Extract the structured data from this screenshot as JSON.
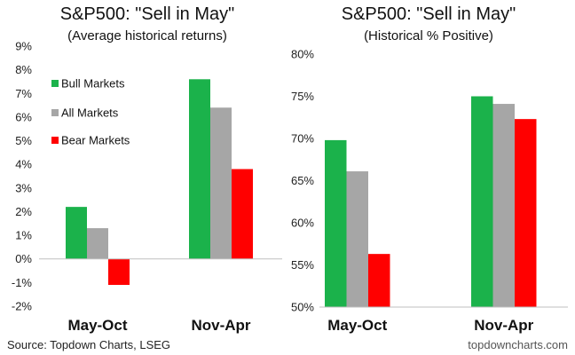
{
  "colors": {
    "bull": "#1bb24b",
    "all": "#a6a6a6",
    "bear": "#ff0000",
    "axis": "#bfbfbf"
  },
  "footer": {
    "source": "Source: Topdown Charts, LSEG",
    "site": "topdowncharts.com"
  },
  "chart_data": [
    {
      "type": "bar",
      "title": "S&P500: \"Sell in May\"",
      "subtitle": "(Average historical returns)",
      "categories": [
        "May-Oct",
        "Nov-Apr"
      ],
      "series": [
        {
          "name": "Bull Markets",
          "color": "#1bb24b",
          "values": [
            2.2,
            7.6
          ]
        },
        {
          "name": "All Markets",
          "color": "#a6a6a6",
          "values": [
            1.3,
            6.4
          ]
        },
        {
          "name": "Bear Markets",
          "color": "#ff0000",
          "values": [
            -1.1,
            3.8
          ]
        }
      ],
      "ylim": [
        -2,
        9
      ],
      "yticks": [
        -2,
        -1,
        0,
        1,
        2,
        3,
        4,
        5,
        6,
        7,
        8,
        9
      ],
      "ytick_labels": [
        "-2%",
        "-1%",
        "0%",
        "1%",
        "2%",
        "3%",
        "4%",
        "5%",
        "6%",
        "7%",
        "8%",
        "9%"
      ],
      "legend": "top-left",
      "grid": false
    },
    {
      "type": "bar",
      "title": "S&P500: \"Sell in May\"",
      "subtitle": "(Historical % Positive)",
      "categories": [
        "May-Oct",
        "Nov-Apr"
      ],
      "series": [
        {
          "name": "Bull Markets",
          "color": "#1bb24b",
          "values": [
            69.8,
            75.0
          ]
        },
        {
          "name": "All Markets",
          "color": "#a6a6a6",
          "values": [
            66.1,
            74.1
          ]
        },
        {
          "name": "Bear Markets",
          "color": "#ff0000",
          "values": [
            56.3,
            72.3
          ]
        }
      ],
      "ylim": [
        50,
        80
      ],
      "yticks": [
        50,
        55,
        60,
        65,
        70,
        75,
        80
      ],
      "ytick_labels": [
        "50%",
        "55%",
        "60%",
        "65%",
        "70%",
        "75%",
        "80%"
      ],
      "legend": "none",
      "grid": false
    }
  ]
}
